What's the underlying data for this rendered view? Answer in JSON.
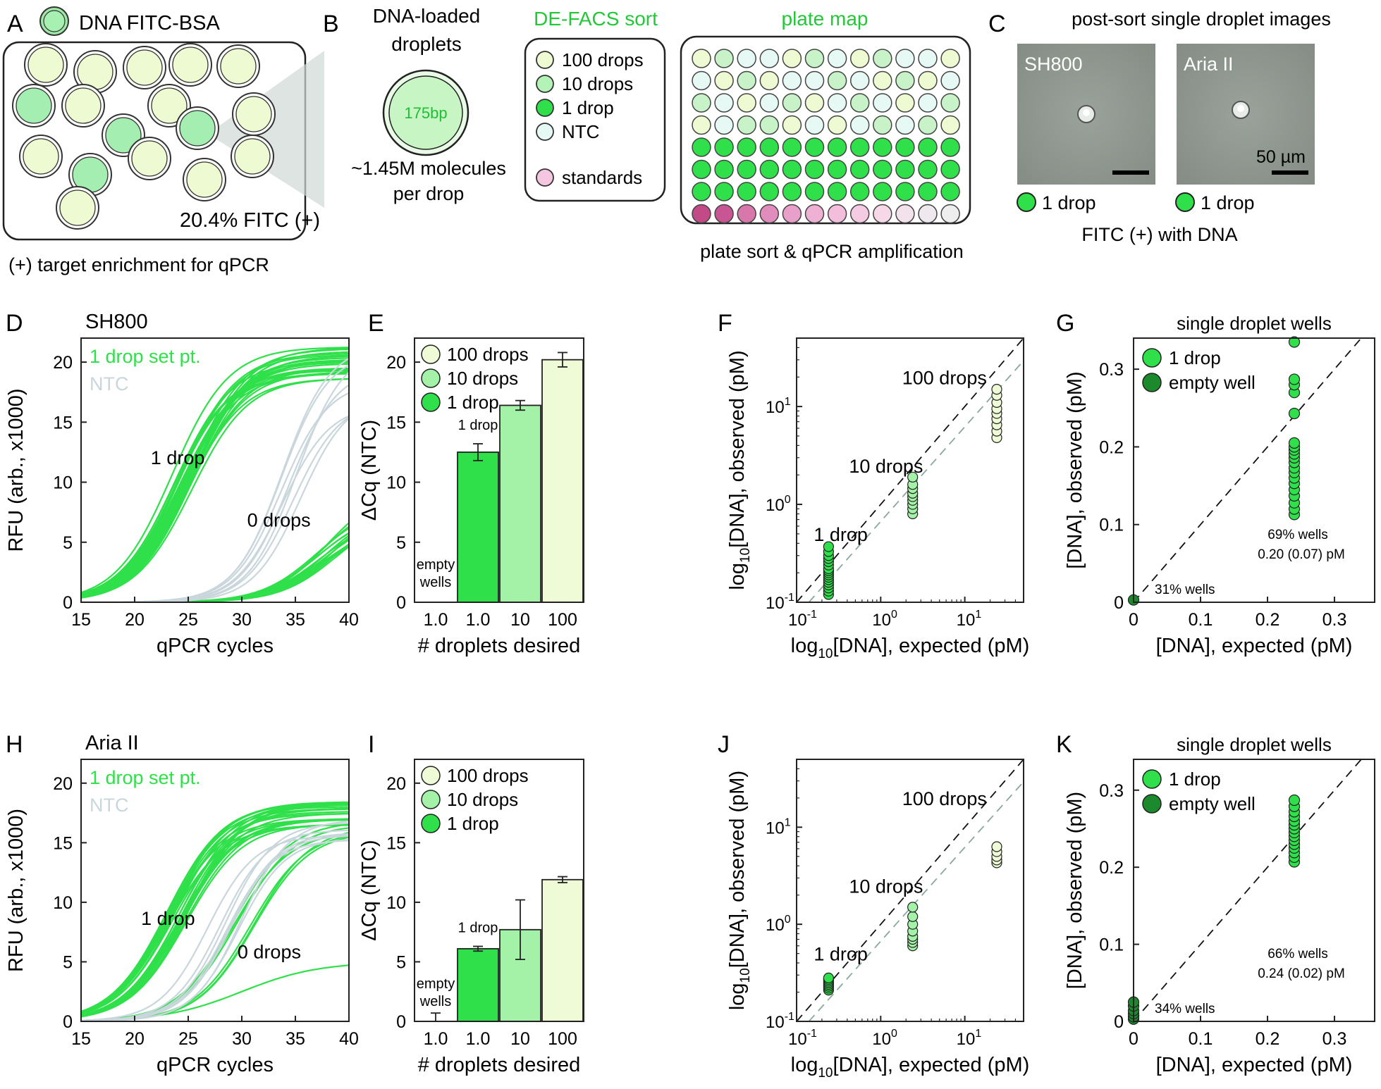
{
  "panel_letters": {
    "A": "A",
    "B": "B",
    "C": "C",
    "D": "D",
    "E": "E",
    "F": "F",
    "G": "G",
    "H": "H",
    "I": "I",
    "J": "J",
    "K": "K"
  },
  "colors": {
    "green_bright": "#2fe04a",
    "green_mid": "#78ee88",
    "green_light": "#c8f7c0",
    "cream": "#eefbd6",
    "ntc": "#e7f8f4",
    "ntc_curve": "#c9d6dc",
    "dark_green": "#1c8a2c",
    "pink": "#f2b8d8",
    "magenta": "#c24a86",
    "grey_dash": "#8aa89f"
  },
  "panelA": {
    "legend_label": "DNA FITC-BSA",
    "fitc_text": "20.4% FITC (+)",
    "caption": "(+) target enrichment for qPCR"
  },
  "panelB": {
    "title_line1": "DNA-loaded",
    "title_line2": "droplets",
    "droplet_label": "175bp",
    "mol_line1": "~1.45M molecules",
    "mol_line2": "per drop",
    "sort_title": "DE-FACS sort",
    "legend": [
      "100 drops",
      "10 drops",
      "1 drop",
      "NTC",
      "standards"
    ],
    "platemap_title": "plate map",
    "plate_caption": "plate sort & qPCR amplification"
  },
  "panelC": {
    "title": "post-sort single droplet images",
    "img1_label": "SH800",
    "img2_label": "Aria II",
    "scale": "50 µm",
    "drop1": "1 drop",
    "drop2": "1 drop",
    "caption": "FITC (+) with DNA"
  },
  "chart_data": [
    {
      "id": "D",
      "type": "line",
      "title": "SH800",
      "xlabel": "qPCR cycles",
      "ylabel": "RFU (arb., x1000)",
      "xlim": [
        15,
        40
      ],
      "ylim": [
        0,
        22
      ],
      "xticks": [
        "15",
        "20",
        "25",
        "30",
        "35",
        "40"
      ],
      "yticks": [
        "0",
        "5",
        "10",
        "15",
        "20"
      ],
      "legend": [
        "1 drop set pt.",
        "NTC"
      ],
      "annotations": [
        "1 drop",
        "0 drops"
      ],
      "series": [
        {
          "name": "1 drop set pt.",
          "group": "1 drop",
          "midpoints": [
            23.5,
            25.5
          ],
          "plateaus": [
            18.5,
            21.5
          ]
        },
        {
          "name": "1 drop set pt.",
          "group": "0 drops",
          "midpoints": [
            36,
            39
          ],
          "plateaus": [
            6,
            10
          ]
        },
        {
          "name": "NTC",
          "group": "NTC",
          "midpoints": [
            33.5,
            35.5
          ],
          "plateaus": [
            16,
            22
          ]
        }
      ]
    },
    {
      "id": "E",
      "type": "bar",
      "xlabel": "# droplets desired",
      "ylabel": "ΔCq (NTC)",
      "categories": [
        "1.0",
        "1.0",
        "10",
        "100"
      ],
      "values": [
        0,
        12.5,
        16.4,
        20.2
      ],
      "errors": [
        0,
        0.7,
        0.4,
        0.6
      ],
      "ylim": [
        0,
        22
      ],
      "yticks": [
        "0",
        "5",
        "10",
        "15",
        "20"
      ],
      "legend": [
        "100 drops",
        "10 drops",
        "1 drop"
      ],
      "annotations": [
        "1 drop",
        "empty",
        "wells"
      ]
    },
    {
      "id": "F",
      "type": "scatter",
      "xlabel_pre": "log",
      "xlabel_sub": "10",
      "xlabel_post": "[DNA], expected (pM)",
      "ylabel_pre": "log",
      "ylabel_sub": "10",
      "ylabel_post": "[DNA], observed (pM)",
      "scale": "log",
      "xlim": [
        0.1,
        50
      ],
      "ylim": [
        0.1,
        50
      ],
      "xticks": [
        {
          "base": "10",
          "exp": "-1"
        },
        {
          "base": "10",
          "exp": "0"
        },
        {
          "base": "10",
          "exp": "1"
        }
      ],
      "yticks": [
        {
          "base": "10",
          "exp": "-1"
        },
        {
          "base": "10",
          "exp": "0"
        },
        {
          "base": "10",
          "exp": "1"
        }
      ],
      "annotations": [
        "100 drops",
        "10 drops",
        "1 drop"
      ],
      "series": [
        {
          "name": "1 drop",
          "x": 0.24,
          "y": [
            0.12,
            0.13,
            0.14,
            0.15,
            0.16,
            0.17,
            0.18,
            0.19,
            0.2,
            0.21,
            0.22,
            0.24,
            0.26,
            0.28,
            0.3,
            0.33,
            0.37
          ]
        },
        {
          "name": "10 drops",
          "x": 2.4,
          "y": [
            0.8,
            0.9,
            1.0,
            1.1,
            1.2,
            1.3,
            1.45,
            1.6,
            1.9
          ]
        },
        {
          "name": "100 drops",
          "x": 24,
          "y": [
            4.8,
            5.6,
            6.5,
            7.5,
            8.5,
            9.5,
            11,
            13,
            15
          ]
        }
      ]
    },
    {
      "id": "G",
      "type": "scatter",
      "title": "single droplet wells",
      "xlabel": "[DNA], expected (pM)",
      "ylabel": "[DNA], observed (pM)",
      "xlim": [
        0,
        0.36
      ],
      "ylim": [
        0,
        0.34
      ],
      "xticks": [
        "0",
        "0.1",
        "0.2",
        "0.3"
      ],
      "yticks": [
        "0",
        "0.1",
        "0.2",
        "0.3"
      ],
      "legend": [
        "1 drop",
        "empty well"
      ],
      "annotations": [
        "69% wells",
        "0.20 (0.07) pM",
        "31% wells"
      ],
      "series": [
        {
          "name": "1 drop",
          "x": 0.24,
          "y": [
            0.113,
            0.12,
            0.128,
            0.137,
            0.145,
            0.153,
            0.16,
            0.167,
            0.173,
            0.18,
            0.186,
            0.191,
            0.196,
            0.2,
            0.205,
            0.243,
            0.27,
            0.28,
            0.287,
            0.335
          ]
        },
        {
          "name": "empty well",
          "x": 0,
          "y": [
            0.003
          ]
        }
      ]
    },
    {
      "id": "H",
      "type": "line",
      "title": "Aria II",
      "xlabel": "qPCR cycles",
      "ylabel": "RFU (arb., x1000)",
      "xlim": [
        15,
        40
      ],
      "ylim": [
        0,
        22
      ],
      "xticks": [
        "15",
        "20",
        "25",
        "30",
        "35",
        "40"
      ],
      "yticks": [
        "0",
        "5",
        "10",
        "15",
        "20"
      ],
      "legend": [
        "1 drop set pt.",
        "NTC"
      ],
      "annotations": [
        "1 drop",
        "0 drops"
      ],
      "series": [
        {
          "name": "1 drop set pt.",
          "group": "1 drop",
          "midpoints": [
            23,
            25
          ],
          "plateaus": [
            16.5,
            18.5
          ]
        },
        {
          "name": "1 drop set pt.",
          "group": "0 drops",
          "midpoints": [
            28.5,
            31.5
          ],
          "plateaus": [
            15,
            17.5
          ]
        },
        {
          "name": "1 drop set pt.",
          "group": "0 drops low",
          "midpoints": [
            30
          ],
          "plateaus": [
            5
          ]
        },
        {
          "name": "NTC",
          "group": "NTC",
          "midpoints": [
            26,
            30
          ],
          "plateaus": [
            15,
            17
          ]
        }
      ]
    },
    {
      "id": "I",
      "type": "bar",
      "xlabel": "# droplets desired",
      "ylabel": "ΔCq (NTC)",
      "categories": [
        "1.0",
        "1.0",
        "10",
        "100"
      ],
      "values": [
        0,
        6.1,
        7.7,
        11.9
      ],
      "errors": [
        0.7,
        0.2,
        2.5,
        0.25
      ],
      "ylim": [
        0,
        22
      ],
      "yticks": [
        "0",
        "5",
        "10",
        "15",
        "20"
      ],
      "legend": [
        "100 drops",
        "10 drops",
        "1 drop"
      ],
      "annotations": [
        "1 drop",
        "empty",
        "wells"
      ]
    },
    {
      "id": "J",
      "type": "scatter",
      "xlabel_pre": "log",
      "xlabel_sub": "10",
      "xlabel_post": "[DNA], expected (pM)",
      "ylabel_pre": "log",
      "ylabel_sub": "10",
      "ylabel_post": "[DNA], observed (pM)",
      "scale": "log",
      "xlim": [
        0.1,
        50
      ],
      "ylim": [
        0.1,
        50
      ],
      "xticks": [
        {
          "base": "10",
          "exp": "-1"
        },
        {
          "base": "10",
          "exp": "0"
        },
        {
          "base": "10",
          "exp": "1"
        }
      ],
      "yticks": [
        {
          "base": "10",
          "exp": "-1"
        },
        {
          "base": "10",
          "exp": "0"
        },
        {
          "base": "10",
          "exp": "1"
        }
      ],
      "annotations": [
        "100 drops",
        "10 drops",
        "1 drop"
      ],
      "series": [
        {
          "name": "1 drop",
          "x": 0.24,
          "y": [
            0.21,
            0.22,
            0.23,
            0.24,
            0.25,
            0.26,
            0.27,
            0.28
          ]
        },
        {
          "name": "10 drops",
          "x": 2.4,
          "y": [
            0.6,
            0.65,
            0.7,
            0.75,
            0.85,
            1.0,
            1.2,
            1.5
          ]
        },
        {
          "name": "100 drops",
          "x": 24,
          "y": [
            4.3,
            4.6,
            5.0,
            5.6,
            6.3
          ]
        }
      ]
    },
    {
      "id": "K",
      "type": "scatter",
      "title": "single droplet wells",
      "xlabel": "[DNA], expected (pM)",
      "ylabel": "[DNA], observed (pM)",
      "xlim": [
        0,
        0.36
      ],
      "ylim": [
        0,
        0.34
      ],
      "xticks": [
        "0",
        "0.1",
        "0.2",
        "0.3"
      ],
      "yticks": [
        "0",
        "0.1",
        "0.2",
        "0.3"
      ],
      "legend": [
        "1 drop",
        "empty well"
      ],
      "annotations": [
        "66% wells",
        "0.24 (0.02) pM",
        "34% wells"
      ],
      "series": [
        {
          "name": "1 drop",
          "x": 0.24,
          "y": [
            0.207,
            0.213,
            0.219,
            0.225,
            0.23,
            0.235,
            0.24,
            0.245,
            0.25,
            0.255,
            0.26,
            0.266,
            0.272,
            0.279,
            0.287
          ]
        },
        {
          "name": "empty well",
          "x": 0,
          "y": [
            0.003,
            0.006,
            0.01,
            0.014,
            0.02,
            0.025
          ]
        }
      ]
    }
  ]
}
